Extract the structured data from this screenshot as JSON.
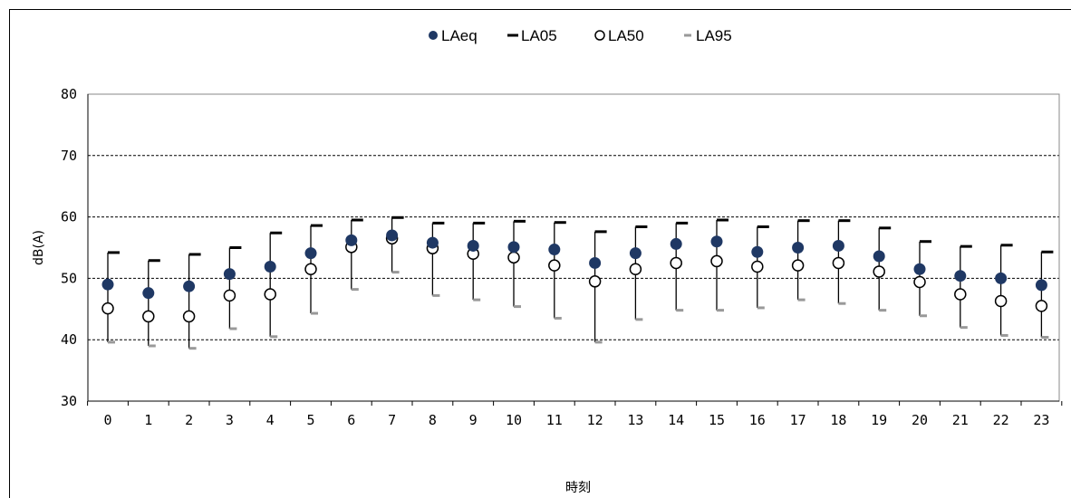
{
  "chart_data": {
    "type": "scatter",
    "title": "",
    "xlabel": "時刻",
    "ylabel": "dB(A)",
    "ylim": [
      30,
      80
    ],
    "yticks": [
      30,
      40,
      50,
      60,
      70,
      80
    ],
    "grid": "horizontal dashed",
    "legend_position": "top",
    "categories": [
      "0",
      "1",
      "2",
      "3",
      "4",
      "5",
      "6",
      "7",
      "8",
      "9",
      "10",
      "11",
      "12",
      "13",
      "14",
      "15",
      "16",
      "17",
      "18",
      "19",
      "20",
      "21",
      "22",
      "23"
    ],
    "series": [
      {
        "name": "LAeq",
        "marker": "filled-circle",
        "color": "#1f3864",
        "values": [
          49.0,
          47.6,
          48.7,
          50.7,
          51.9,
          54.1,
          56.2,
          57.0,
          55.8,
          55.3,
          55.1,
          54.7,
          52.5,
          54.1,
          55.6,
          56.0,
          54.3,
          55.0,
          55.3,
          53.6,
          51.5,
          50.4,
          50.0,
          48.9
        ]
      },
      {
        "name": "LA05",
        "marker": "dash",
        "color": "#000000",
        "values": [
          54.2,
          52.9,
          53.9,
          55.0,
          57.4,
          58.6,
          59.5,
          59.9,
          59.0,
          59.0,
          59.3,
          59.1,
          57.6,
          58.4,
          59.0,
          59.5,
          58.4,
          59.4,
          59.4,
          58.2,
          56.0,
          55.2,
          55.4,
          54.3
        ]
      },
      {
        "name": "LA50",
        "marker": "open-circle",
        "color": "#000000",
        "values": [
          45.1,
          43.8,
          43.8,
          47.2,
          47.4,
          51.5,
          55.1,
          56.5,
          54.9,
          54.0,
          53.4,
          52.1,
          49.5,
          51.5,
          52.5,
          52.8,
          51.9,
          52.1,
          52.5,
          51.1,
          49.4,
          47.4,
          46.3,
          45.5
        ]
      },
      {
        "name": "LA95",
        "marker": "dash",
        "color": "#999999",
        "values": [
          39.6,
          39.0,
          38.6,
          41.8,
          40.5,
          44.3,
          48.2,
          51.0,
          47.2,
          46.5,
          45.4,
          43.5,
          39.6,
          43.3,
          44.8,
          44.8,
          45.2,
          46.5,
          45.9,
          44.8,
          43.9,
          42.0,
          40.7,
          40.4
        ]
      }
    ]
  }
}
